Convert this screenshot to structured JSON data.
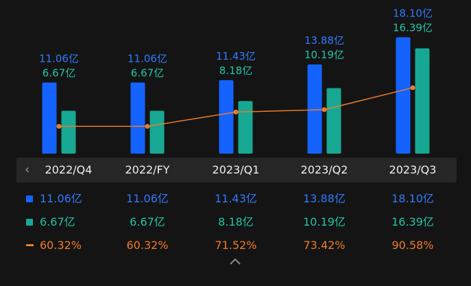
{
  "colors": {
    "series1": "#1463ff",
    "series1_label": "#2f7bff",
    "series2": "#17a893",
    "series2_label": "#22c4a6",
    "ratio": "#f07a2a",
    "background": "#141414",
    "period_bar": "#262626"
  },
  "chart_data": {
    "type": "bar",
    "categories": [
      "2022/Q4",
      "2022/FY",
      "2023/Q1",
      "2023/Q2",
      "2023/Q3"
    ],
    "series": [
      {
        "values": [
          11.06,
          11.06,
          11.43,
          13.88,
          18.1
        ],
        "labels": [
          "11.06亿",
          "11.06亿",
          "11.43亿",
          "13.88亿",
          "18.10亿"
        ]
      },
      {
        "values": [
          6.67,
          6.67,
          8.18,
          10.19,
          16.39
        ],
        "labels": [
          "6.67亿",
          "6.67亿",
          "8.18亿",
          "10.19亿",
          "16.39亿"
        ]
      },
      {
        "type": "line",
        "values": [
          60.32,
          60.32,
          71.52,
          73.42,
          90.58
        ],
        "labels": [
          "60.32%",
          "60.32%",
          "71.52%",
          "73.42%",
          "90.58%"
        ]
      }
    ],
    "ylim": [
      0,
      19
    ],
    "ratio_ylim": [
      40,
      95
    ]
  },
  "icons": {
    "left": "chevron-left-icon",
    "up": "chevron-up-icon"
  }
}
